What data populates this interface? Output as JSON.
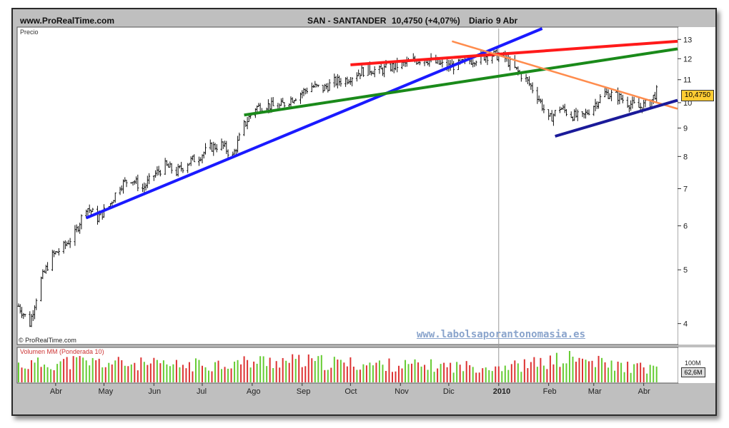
{
  "header": {
    "site": "www.ProRealTime.com",
    "instrument": "SAN - SANTANDER",
    "price_change": "10,4750 (+4,07%)",
    "period": "Diario",
    "date": "9 Abr"
  },
  "price_panel": {
    "label": "Precio",
    "copyright": "© ProRealTime.com",
    "watermark": "www.labolsaporantonomasia.es",
    "last_price_label": "10,4750"
  },
  "volume_panel": {
    "label": "Volumen MM (Ponderada 10)",
    "scale_label": "100M",
    "last_volume_label": "62,6M"
  },
  "colors": {
    "up_bar": "#66cc33",
    "down_bar": "#dd3333",
    "line_blue": "#1a1aff",
    "line_red": "#ff1a1a",
    "line_green": "#1a8a1a",
    "line_orange": "#ff8c4d",
    "line_navy": "#1a1a99",
    "price_tag_bg": "#ffcc33"
  },
  "chart_data": {
    "type": "line",
    "subtype": "ohlc",
    "title": "SAN - SANTANDER",
    "ylabel": "Precio",
    "y_scale": "log",
    "ylim": [
      3.7,
      13.6
    ],
    "y_ticks": [
      "4",
      "5",
      "6",
      "7",
      "8",
      "9",
      "10",
      "11",
      "12",
      "13"
    ],
    "x_ticks": [
      "Abr",
      "May",
      "Jun",
      "Jul",
      "Ago",
      "Sep",
      "Oct",
      "Nov",
      "Dic",
      "2010",
      "Feb",
      "Mar",
      "Abr"
    ],
    "x_tick_dates": [
      "2009-04-01",
      "2009-05-01",
      "2009-06-01",
      "2009-07-01",
      "2009-08-01",
      "2009-09-01",
      "2009-10-01",
      "2009-11-01",
      "2009-12-01",
      "2010-01-01",
      "2010-02-01",
      "2010-03-01",
      "2010-04-01"
    ],
    "xlim": [
      "2009-03-09",
      "2010-04-22"
    ],
    "series": [
      {
        "type": "line",
        "x": [
          "2009-03-09",
          "2009-03-16",
          "2009-03-23",
          "2009-03-30",
          "2009-04-06",
          "2009-04-13",
          "2009-04-20",
          "2009-04-27",
          "2009-05-04",
          "2009-05-11",
          "2009-05-18",
          "2009-05-25",
          "2009-06-01",
          "2009-06-08",
          "2009-06-15",
          "2009-06-22",
          "2009-06-29",
          "2009-07-06",
          "2009-07-13",
          "2009-07-20",
          "2009-07-27",
          "2009-08-03",
          "2009-08-10",
          "2009-08-17",
          "2009-08-24",
          "2009-08-31",
          "2009-09-07",
          "2009-09-14",
          "2009-09-21",
          "2009-09-28",
          "2009-10-05",
          "2009-10-12",
          "2009-10-19",
          "2009-10-26",
          "2009-11-02",
          "2009-11-09",
          "2009-11-16",
          "2009-11-23",
          "2009-11-30",
          "2009-12-07",
          "2009-12-14",
          "2009-12-21",
          "2009-12-28",
          "2010-01-04",
          "2010-01-11",
          "2010-01-18",
          "2010-01-25",
          "2010-02-01",
          "2010-02-08",
          "2010-02-15",
          "2010-02-22",
          "2010-03-01",
          "2010-03-08",
          "2010-03-15",
          "2010-03-22",
          "2010-03-29",
          "2010-04-05",
          "2010-04-09"
        ],
        "values": [
          4.3,
          4.0,
          4.8,
          5.3,
          5.5,
          5.8,
          6.5,
          6.2,
          6.5,
          7.1,
          7.3,
          7.0,
          7.4,
          7.7,
          7.5,
          7.8,
          8.0,
          8.3,
          8.4,
          8.0,
          9.1,
          9.8,
          9.9,
          9.8,
          10.1,
          10.4,
          10.7,
          10.6,
          10.9,
          11.0,
          11.3,
          11.5,
          11.4,
          11.6,
          11.7,
          11.9,
          12.0,
          11.8,
          11.6,
          11.7,
          11.9,
          12.1,
          12.2,
          12.1,
          11.5,
          11.0,
          10.3,
          9.3,
          9.8,
          9.5,
          9.4,
          9.9,
          10.4,
          10.3,
          10.0,
          9.8,
          10.0,
          10.475
        ]
      },
      {
        "type": "volume",
        "x": [
          "2009-03",
          "2009-04",
          "2009-05",
          "2009-06",
          "2009-07",
          "2009-08",
          "2009-09",
          "2009-10",
          "2009-11",
          "2009-12",
          "2010-01",
          "2010-02",
          "2010-03",
          "2010-04"
        ],
        "values": [
          90,
          105,
          95,
          85,
          95,
          110,
          100,
          90,
          85,
          80,
          85,
          120,
          85,
          62.6
        ]
      }
    ],
    "trendlines": [
      {
        "color": "blue",
        "from": [
          "2009-04-20",
          6.2
        ],
        "to": [
          "2010-01-28",
          13.6
        ]
      },
      {
        "color": "red",
        "from": [
          "2009-10-01",
          11.7
        ],
        "to": [
          "2010-04-22",
          12.9
        ]
      },
      {
        "color": "green",
        "from": [
          "2009-07-27",
          9.5
        ],
        "to": [
          "2010-04-22",
          12.5
        ]
      },
      {
        "color": "orange",
        "from": [
          "2009-12-03",
          12.9
        ],
        "to": [
          "2010-04-22",
          9.75
        ]
      },
      {
        "color": "navy",
        "from": [
          "2010-02-05",
          8.7
        ],
        "to": [
          "2010-04-22",
          10.1
        ]
      }
    ]
  }
}
